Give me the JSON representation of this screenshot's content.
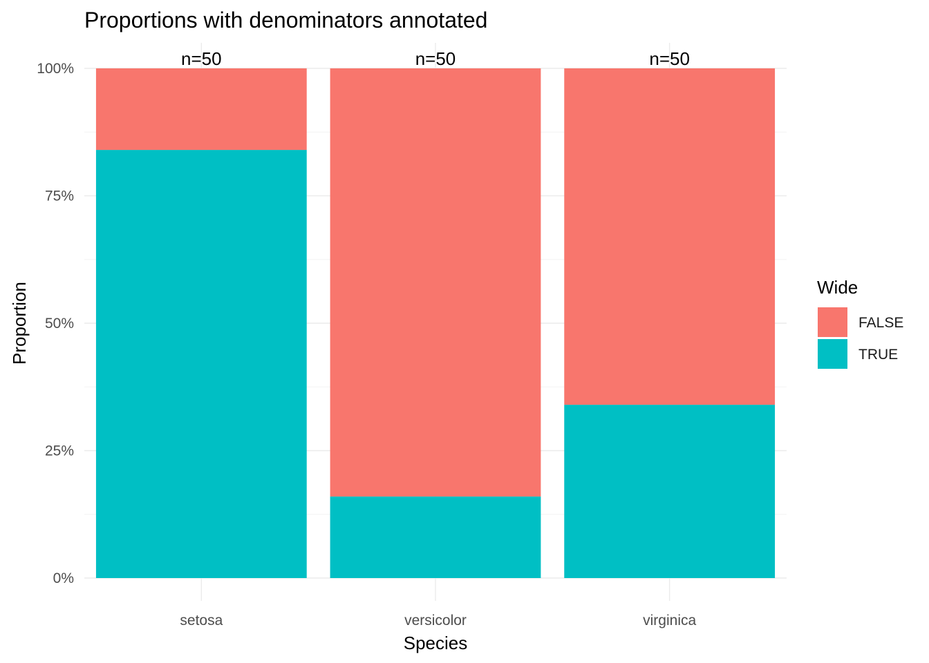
{
  "chart_data": {
    "type": "bar",
    "stacked": true,
    "title": "Proportions with denominators annotated",
    "xlabel": "Species",
    "ylabel": "Proportion",
    "categories": [
      "setosa",
      "versicolor",
      "virginica"
    ],
    "series": [
      {
        "name": "FALSE",
        "color": "#F8766D",
        "values": [
          0.16,
          0.84,
          0.66
        ]
      },
      {
        "name": "TRUE",
        "color": "#00BFC4",
        "values": [
          0.84,
          0.16,
          0.34
        ]
      }
    ],
    "ylim": [
      0,
      1
    ],
    "yticks": [
      0,
      0.25,
      0.5,
      0.75,
      1
    ],
    "ytick_labels": [
      "0%",
      "25%",
      "50%",
      "75%",
      "100%"
    ],
    "annotations": [
      "n=50",
      "n=50",
      "n=50"
    ],
    "legend": {
      "title": "Wide",
      "position": "right"
    },
    "grid": true
  }
}
